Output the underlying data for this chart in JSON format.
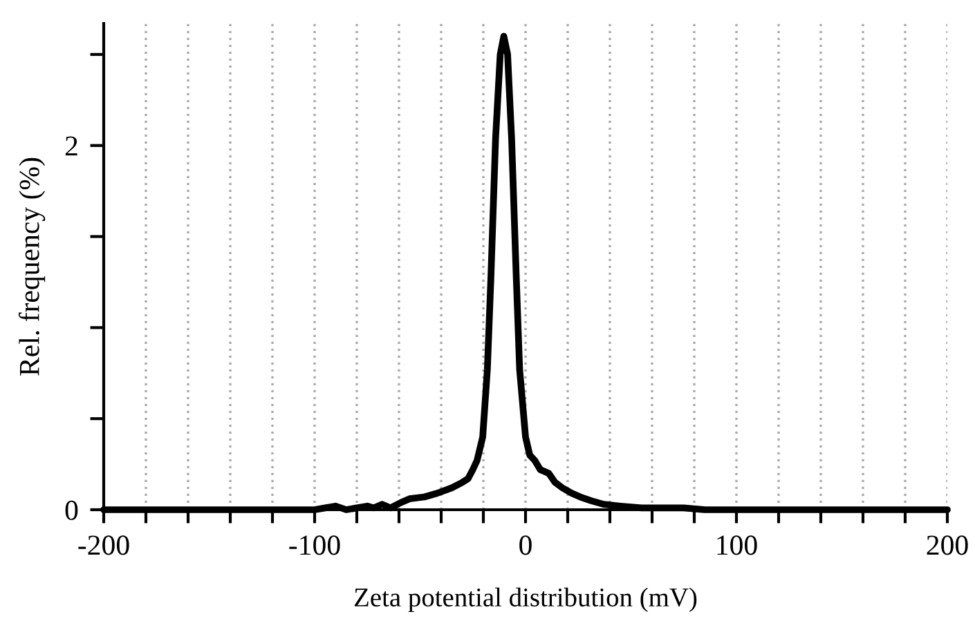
{
  "chart_data": {
    "type": "line",
    "xlabel": "Zeta potential distribution (mV)",
    "ylabel": "Rel. frequency (%)",
    "xlim": [
      -200,
      200
    ],
    "ylim": [
      0,
      2.67
    ],
    "xticks": [
      -200,
      {
        "value": -180,
        "label": null
      },
      {
        "value": -160,
        "label": null
      },
      {
        "value": -140,
        "label": null
      },
      {
        "value": -120,
        "label": null
      },
      -100,
      {
        "value": -80,
        "label": null
      },
      {
        "value": -60,
        "label": null
      },
      {
        "value": -40,
        "label": null
      },
      {
        "value": -20,
        "label": null
      },
      0,
      {
        "value": 20,
        "label": null
      },
      {
        "value": 40,
        "label": null
      },
      {
        "value": 60,
        "label": null
      },
      {
        "value": 80,
        "label": null
      },
      100,
      {
        "value": 120,
        "label": null
      },
      {
        "value": 140,
        "label": null
      },
      {
        "value": 160,
        "label": null
      },
      {
        "value": 180,
        "label": null
      },
      200
    ],
    "yticks": [
      0,
      {
        "value": 0.5,
        "label": null
      },
      {
        "value": 1,
        "label": null
      },
      {
        "value": 1.5,
        "label": null
      },
      2,
      {
        "value": 2.5,
        "label": null
      }
    ],
    "grid": "x",
    "marker": "none",
    "line_style": "solid",
    "series": [
      {
        "color": "#000000",
        "x": [
          -200,
          -100,
          -95,
          -90,
          -85,
          -80,
          -75,
          -72,
          -68,
          -64,
          -59,
          -55,
          -48,
          -42,
          -35,
          -30,
          -27.3,
          -25,
          -23,
          -20.3,
          -18.1,
          -16.4,
          -14.2,
          -12,
          -10.3,
          -8.5,
          -6.6,
          -4.4,
          -2.8,
          0,
          2,
          4.4,
          7,
          11,
          14,
          17.5,
          22,
          26,
          31,
          37,
          45,
          55,
          65,
          75,
          85,
          100,
          200
        ],
        "values": [
          0,
          0,
          0.01,
          0.02,
          0,
          0.01,
          0.02,
          0.01,
          0.03,
          0.01,
          0.04,
          0.06,
          0.07,
          0.09,
          0.12,
          0.15,
          0.17,
          0.22,
          0.27,
          0.4,
          0.77,
          1.28,
          2.04,
          2.5,
          2.6,
          2.5,
          2.04,
          1.28,
          0.77,
          0.4,
          0.3,
          0.27,
          0.22,
          0.2,
          0.15,
          0.12,
          0.09,
          0.07,
          0.05,
          0.03,
          0.02,
          0.01,
          0.01,
          0.01,
          0,
          0,
          0
        ]
      }
    ]
  }
}
